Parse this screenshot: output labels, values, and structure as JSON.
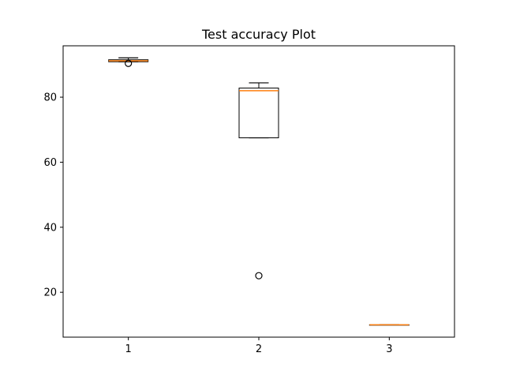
{
  "chart_data": {
    "type": "boxplot",
    "title": "Test accuracy Plot",
    "xlabel": "",
    "ylabel": "",
    "categories": [
      "1",
      "2",
      "3"
    ],
    "boxes": [
      {
        "category": "1",
        "whisker_low": 90.9,
        "q1": 90.9,
        "median": 91.2,
        "q3": 91.5,
        "whisker_high": 92.1,
        "fliers": [
          90.4
        ]
      },
      {
        "category": "2",
        "whisker_low": 67.5,
        "q1": 67.5,
        "median": 82.0,
        "q3": 82.8,
        "whisker_high": 84.4,
        "fliers": [
          25.1
        ]
      },
      {
        "category": "3",
        "whisker_low": 10.0,
        "q1": 10.0,
        "median": 10.0,
        "q3": 10.0,
        "whisker_high": 10.0,
        "fliers": []
      }
    ],
    "yticks": [
      "20",
      "40",
      "60",
      "80"
    ],
    "ylim": [
      6.2,
      95.8
    ],
    "grid": false,
    "colors": {
      "box": "#000000",
      "median": "#ff7f0e",
      "flier": "#000000"
    }
  }
}
